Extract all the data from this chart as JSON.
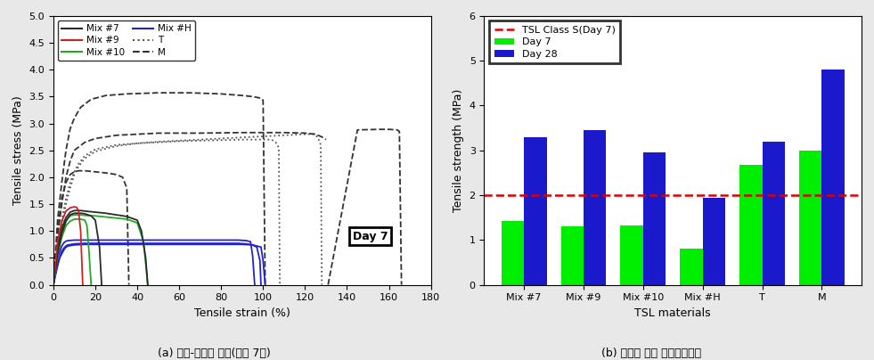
{
  "left_chart": {
    "xlabel": "Tensile strain (%)",
    "ylabel": "Tensile stress (MPa)",
    "xlim": [
      0,
      180
    ],
    "ylim": [
      0.0,
      5.0
    ],
    "xticks": [
      0,
      20,
      40,
      60,
      80,
      100,
      120,
      140,
      160,
      180
    ],
    "yticks": [
      0.0,
      0.5,
      1.0,
      1.5,
      2.0,
      2.5,
      3.0,
      3.5,
      4.0,
      4.5,
      5.0
    ],
    "annotation": "Day 7",
    "col_mix7": "#2a2a2a",
    "col_mix9": "#cc2222",
    "col_mix10": "#22aa22",
    "col_mixH": "#2222cc",
    "col_T": "#555555",
    "col_M": "#333333"
  },
  "right_chart": {
    "xlabel": "TSL materials",
    "ylabel": "Tensile strength (MPa)",
    "ylim": [
      0,
      6
    ],
    "yticks": [
      0,
      1,
      2,
      3,
      4,
      5,
      6
    ],
    "categories": [
      "Mix #7",
      "Mix #9",
      "Mix #10",
      "Mix #H",
      "T",
      "M"
    ],
    "day7_values": [
      1.43,
      1.3,
      1.32,
      0.8,
      2.68,
      3.0
    ],
    "day28_values": [
      3.3,
      3.45,
      2.95,
      1.93,
      3.2,
      4.8
    ],
    "day7_color": "#00ee00",
    "day28_color": "#1a1acc",
    "ref_line_y": 2.0,
    "ref_line_color": "#dd0000",
    "ref_line_style": "dashed",
    "legend_labels": [
      "Day 7",
      "Day 28",
      "TSL Class S(Day 7)"
    ]
  },
  "caption_left": "(a) 응력-변형률 공선(재령 7일)",
  "caption_right": "(b) 재령별 평균 직접인장강도",
  "figure_bgcolor": "#e8e8e8"
}
